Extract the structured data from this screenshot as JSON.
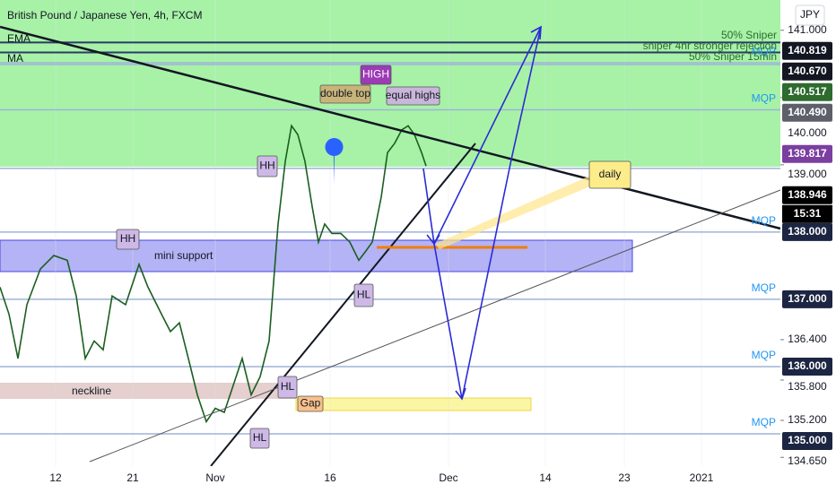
{
  "chart_data": {
    "type": "line",
    "title": "British Pound / Japanese Yen, 4h, FXCM",
    "indicators": [
      "EMA",
      "MA"
    ],
    "currency": "JPY",
    "countdown": "15:31",
    "color": "#1b5e20",
    "x": [
      0,
      2.5,
      5,
      7.5,
      11.25,
      15,
      18.75,
      21.25,
      23.75,
      26.25,
      28.75,
      31.25,
      35,
      38.75,
      41.25,
      45,
      47.5,
      50,
      52.5,
      55,
      57.5,
      60,
      62.5,
      65,
      67.5,
      70,
      72.5,
      75,
      77.5,
      79.5,
      81.25,
      83,
      85,
      87,
      88.75,
      90.5,
      92.5,
      95,
      97.5,
      100,
      102,
      103.75,
      106.25,
      108,
      110,
      112,
      113.75,
      115.5,
      117.5,
      118.75
    ],
    "values": [
      137.18,
      136.78,
      136.12,
      136.92,
      137.45,
      137.65,
      137.58,
      137.05,
      136.12,
      136.38,
      136.25,
      137.05,
      136.92,
      137.52,
      137.18,
      136.78,
      136.52,
      136.65,
      136.12,
      135.58,
      135.18,
      135.38,
      135.32,
      135.72,
      136.12,
      135.58,
      135.85,
      136.38,
      138.12,
      139.05,
      139.58,
      139.45,
      139.05,
      138.38,
      137.85,
      138.12,
      137.98,
      137.98,
      137.85,
      137.58,
      137.72,
      137.85,
      138.52,
      139.18,
      139.32,
      139.52,
      139.58,
      139.45,
      139.18,
      138.98
    ],
    "xlim": [
      0,
      217.5
    ],
    "xticks": [
      {
        "value": 15.5,
        "label": "12"
      },
      {
        "value": 37,
        "label": "21"
      },
      {
        "value": 60,
        "label": "Nov"
      },
      {
        "value": 92,
        "label": "16"
      },
      {
        "value": 125,
        "label": "Dec"
      },
      {
        "value": 152,
        "label": "14"
      },
      {
        "value": 174,
        "label": "23"
      },
      {
        "value": 195.5,
        "label": "2021"
      }
    ],
    "ylim": [
      134.52,
      141.45
    ],
    "yticks": [
      {
        "value": 141,
        "label": "141.000"
      },
      {
        "value": 140,
        "label": "140.000"
      },
      {
        "value": 139,
        "label": "139.000"
      },
      {
        "value": 136.4,
        "label": "136.400"
      },
      {
        "value": 135.8,
        "label": "135.800"
      },
      {
        "value": 135.2,
        "label": "135.200"
      },
      {
        "value": 134.65,
        "label": "134.650"
      }
    ],
    "levels": [
      {
        "value": 140.819,
        "label": "140.819",
        "color": "#131722"
      },
      {
        "value": 140.67,
        "label": "140.670",
        "color": "#131722"
      },
      {
        "value": 140.517,
        "label": "140.517",
        "color": "#2e6b2e",
        "tag": "MQP"
      },
      {
        "value": 140.49,
        "label": "140.490",
        "color": "#5d606b"
      },
      {
        "value": 139.817,
        "label": "139.817",
        "color": "#7b3fa0",
        "tag": "MQP"
      },
      {
        "value": 138.946,
        "label": "138.946",
        "color": "#000000"
      },
      {
        "value": 138,
        "label": "138.000",
        "color": "#1c2541",
        "tag": "MQP"
      },
      {
        "value": 137,
        "label": "137.000",
        "color": "#1c2541",
        "tag": "MQP"
      },
      {
        "value": 136,
        "label": "136.000",
        "color": "#1c2541",
        "tag": "MQP"
      },
      {
        "value": 135,
        "label": "135.000",
        "color": "#1c2541",
        "tag": "MQP"
      }
    ],
    "annotations": [
      "50% Sniper",
      "sniper 4hr stronger rejection",
      "50% Sniper 15min",
      "HIGH",
      "double top",
      "equal highs",
      "HH",
      "HH",
      "HL",
      "HL",
      "HL",
      "mini support",
      "neckline",
      "Gap",
      "daily"
    ]
  }
}
